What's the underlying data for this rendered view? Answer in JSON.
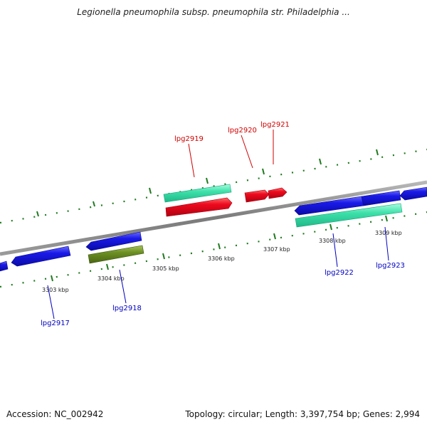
{
  "header": {
    "title": "Legionella pneumophila subsp. pneumophila str. Philadelphia ..."
  },
  "footer": {
    "accession": "Accession: NC_002942",
    "summary": "Topology: circular; Length: 3,397,754 bp; Genes: 2,994"
  },
  "axis": {
    "tick_labels": [
      "3303 kbp",
      "3304 kbp",
      "3305 kbp",
      "3306 kbp",
      "3307 kbp",
      "3308 kbp",
      "3309 kbp"
    ]
  },
  "genes": {
    "lpg2917": "lpg2917",
    "lpg2918": "lpg2918",
    "lpg2919": "lpg2919",
    "lpg2920": "lpg2920",
    "lpg2921": "lpg2921",
    "lpg2922": "lpg2922",
    "lpg2923": "lpg2923"
  },
  "colors": {
    "forward_cds": "#e8001c",
    "reverse_cds": "#1414e6",
    "rna_feature": "#33ddaa",
    "other_feature": "#6b8e23",
    "forward_label": "#d00000",
    "reverse_label": "#0000c0",
    "backbone": "#888888",
    "tick": "#1e7a1e"
  }
}
